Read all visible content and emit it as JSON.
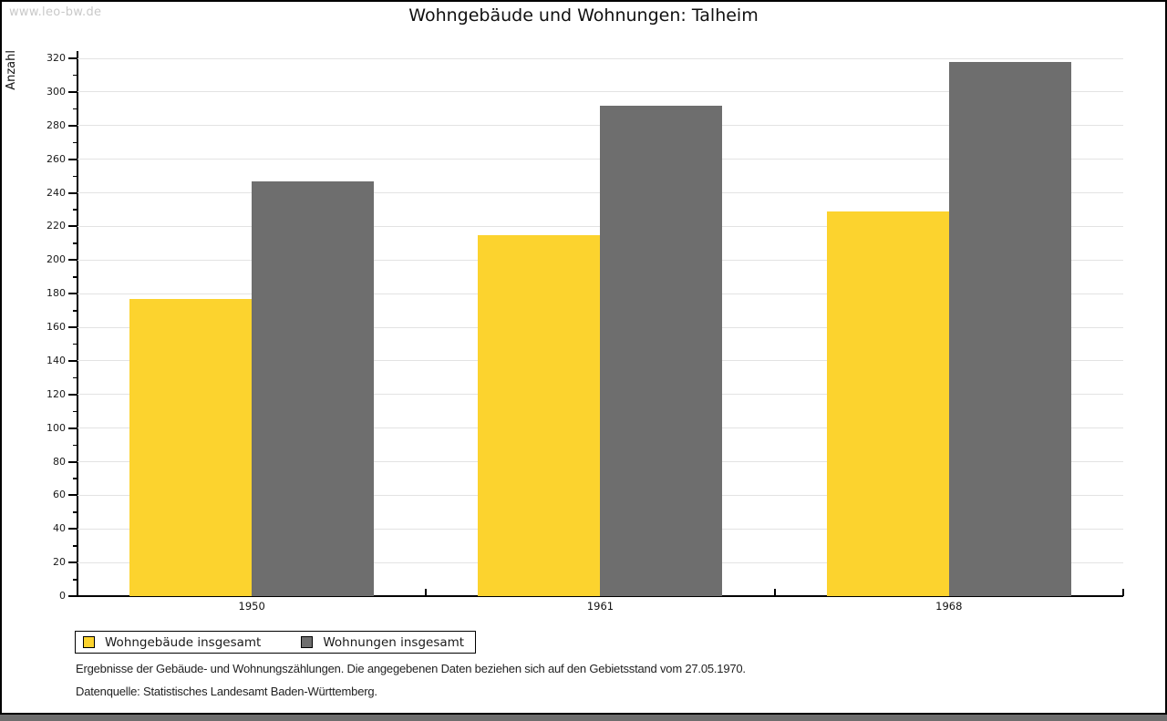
{
  "watermark": "www.leo-bw.de",
  "chart_data": {
    "type": "bar",
    "title": "Wohngebäude und Wohnungen: Talheim",
    "ylabel": "Anzahl",
    "xlabel": "",
    "categories": [
      "1950",
      "1961",
      "1968"
    ],
    "series": [
      {
        "name": "Wohngebäude insgesamt",
        "color": "#FCD32E",
        "values": [
          177,
          215,
          229
        ]
      },
      {
        "name": "Wohnungen insgesamt",
        "color": "#6E6E6E",
        "values": [
          247,
          292,
          318
        ]
      }
    ],
    "ylim": [
      0,
      320
    ],
    "ytick_step": 20,
    "yminor_step": 10,
    "grid": true,
    "legend_position": "bottom-left"
  },
  "footnotes": {
    "line1": "Ergebnisse der Gebäude- und Wohnungszählungen. Die angegebenen Daten beziehen sich auf den Gebietsstand vom 27.05.1970.",
    "line2": "Datenquelle: Statistisches Landesamt Baden-Württemberg."
  },
  "colors": {
    "bar_yellow": "#FCD32E",
    "bar_gray": "#6E6E6E",
    "gridline": "#E3E3E3",
    "axis": "#000000",
    "watermark_text": "#C9C9C9",
    "bottom_strip": "#6E6E6E"
  }
}
